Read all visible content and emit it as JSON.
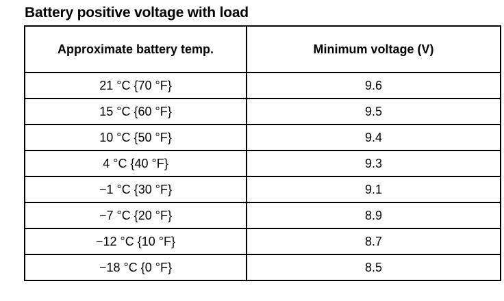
{
  "title": "Battery positive voltage with load",
  "table": {
    "headers": [
      "Approximate battery temp.",
      "Minimum voltage (V)"
    ],
    "rows": [
      {
        "temp": "21 °C {70 °F}",
        "voltage": "9.6"
      },
      {
        "temp": "15 °C {60 °F}",
        "voltage": "9.5"
      },
      {
        "temp": "10 °C {50 °F}",
        "voltage": "9.4"
      },
      {
        "temp": "4 °C {40 °F}",
        "voltage": "9.3"
      },
      {
        "temp": "−1 °C {30 °F}",
        "voltage": "9.1"
      },
      {
        "temp": "−7 °C {20 °F}",
        "voltage": "8.9"
      },
      {
        "temp": "−12 °C {10 °F}",
        "voltage": "8.7"
      },
      {
        "temp": "−18 °C {0 °F}",
        "voltage": "8.5"
      }
    ]
  }
}
